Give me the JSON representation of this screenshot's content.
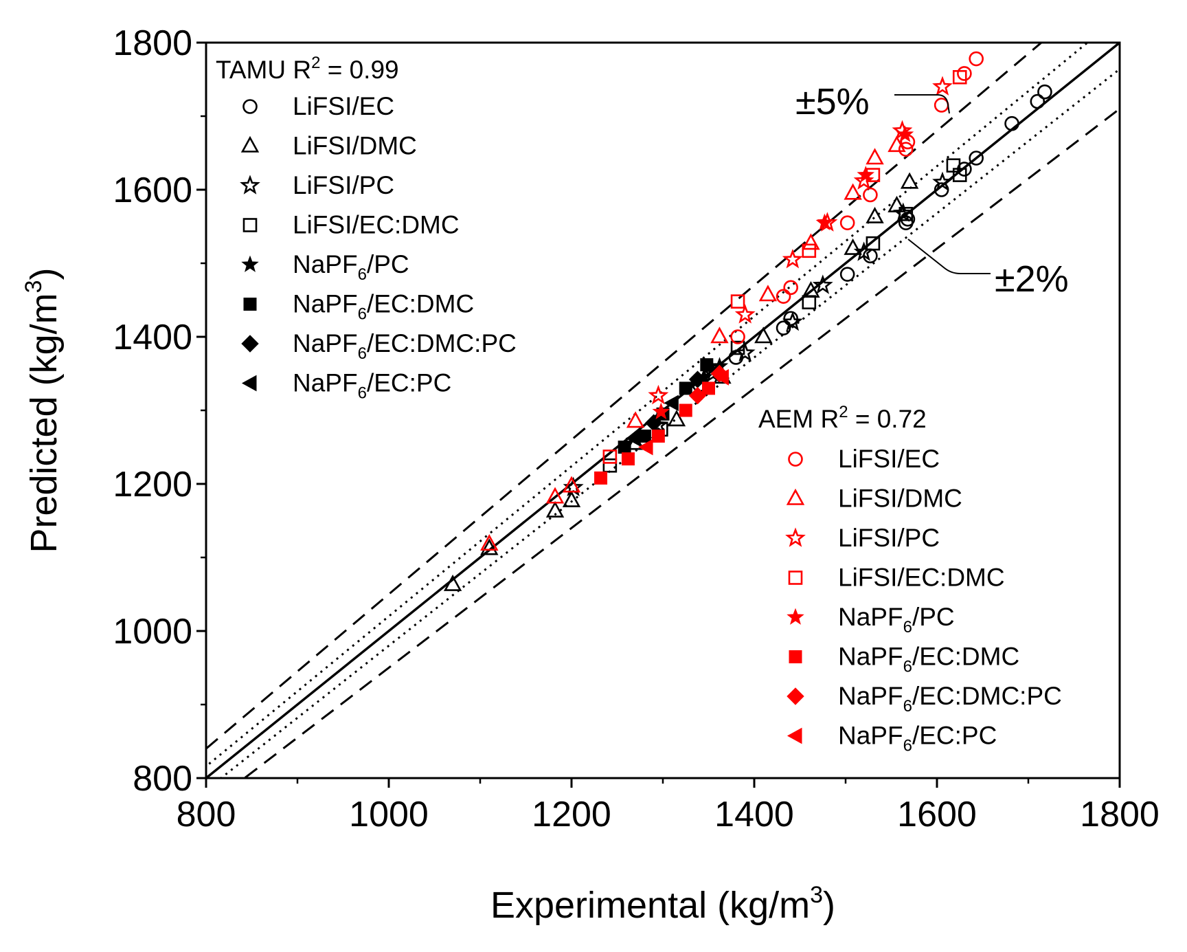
{
  "chart_data": {
    "type": "scatter",
    "xlabel": "Experimental (kg/m",
    "xlabel_sup": "3",
    "xlabel_end": ")",
    "ylabel": "Predicted (kg/m",
    "ylabel_sup": "3",
    "ylabel_end": ")",
    "xlim": [
      800,
      1800
    ],
    "ylim": [
      800,
      1800
    ],
    "xticks": [
      "800",
      "1000",
      "1200",
      "1400",
      "1600",
      "1800"
    ],
    "yticks": [
      "800",
      "1000",
      "1200",
      "1400",
      "1600",
      "1800"
    ],
    "grid": false,
    "reference_lines": {
      "parity": 1.0,
      "dotted": [
        1.02,
        0.98
      ],
      "dashed": [
        1.05,
        0.95
      ]
    },
    "annotations": {
      "plus_minus_5": "±5%",
      "plus_minus_2": "±2%"
    },
    "legend_tamu": {
      "title": "TAMU R",
      "title_sup": "2",
      "title_end": " = 0.99"
    },
    "legend_aem": {
      "title": "AEM R",
      "title_sup": "2",
      "title_end": " = 0.72"
    },
    "colors": {
      "TAMU": "#000000",
      "AEM": "#ff0000"
    },
    "series": [
      {
        "name": "LiFSI/EC",
        "model": "TAMU",
        "marker": "circle-open",
        "points": [
          [
            1340,
            1335
          ],
          [
            1380,
            1372
          ],
          [
            1432,
            1412
          ],
          [
            1440,
            1425
          ],
          [
            1502,
            1485
          ],
          [
            1527,
            1510
          ],
          [
            1566,
            1555
          ],
          [
            1568,
            1560
          ],
          [
            1605,
            1600
          ],
          [
            1630,
            1628
          ],
          [
            1643,
            1643
          ],
          [
            1682,
            1690
          ],
          [
            1710,
            1720
          ],
          [
            1718,
            1733
          ]
        ]
      },
      {
        "name": "LiFSI/DMC",
        "model": "TAMU",
        "marker": "triangle-open",
        "points": [
          [
            1070,
            1063
          ],
          [
            1110,
            1112
          ],
          [
            1182,
            1163
          ],
          [
            1200,
            1177
          ],
          [
            1270,
            1255
          ],
          [
            1315,
            1287
          ],
          [
            1365,
            1345
          ],
          [
            1410,
            1400
          ],
          [
            1462,
            1462
          ],
          [
            1508,
            1520
          ],
          [
            1532,
            1563
          ],
          [
            1556,
            1578
          ],
          [
            1570,
            1610
          ]
        ]
      },
      {
        "name": "LiFSI/PC",
        "model": "TAMU",
        "marker": "star-open",
        "points": [
          [
            1202,
            1195
          ],
          [
            1295,
            1280
          ],
          [
            1355,
            1350
          ],
          [
            1390,
            1378
          ],
          [
            1442,
            1420
          ],
          [
            1475,
            1470
          ],
          [
            1520,
            1515
          ],
          [
            1563,
            1568
          ],
          [
            1606,
            1610
          ]
        ]
      },
      {
        "name": "LiFSI/EC:DMC",
        "model": "TAMU",
        "marker": "square-open",
        "points": [
          [
            1242,
            1225
          ],
          [
            1298,
            1274
          ],
          [
            1382,
            1385
          ],
          [
            1460,
            1447
          ],
          [
            1530,
            1527
          ],
          [
            1566,
            1567
          ],
          [
            1618,
            1633
          ],
          [
            1625,
            1620
          ]
        ]
      },
      {
        "name": "NaPF6/PC",
        "model": "TAMU",
        "marker": "star-filled",
        "points": [
          [
            1345,
            1345
          ],
          [
            1362,
            1360
          ]
        ]
      },
      {
        "name": "NaPF6/EC:DMC",
        "model": "TAMU",
        "marker": "square-filled",
        "points": [
          [
            1258,
            1250
          ],
          [
            1280,
            1265
          ],
          [
            1300,
            1295
          ],
          [
            1325,
            1330
          ],
          [
            1348,
            1362
          ]
        ]
      },
      {
        "name": "NaPF6/EC:DMC:PC",
        "model": "TAMU",
        "marker": "diamond-filled",
        "points": [
          [
            1290,
            1283
          ],
          [
            1338,
            1342
          ]
        ]
      },
      {
        "name": "NaPF6/EC:PC",
        "model": "TAMU",
        "marker": "triangle-left-filled",
        "points": [
          [
            1268,
            1262
          ],
          [
            1310,
            1310
          ]
        ]
      },
      {
        "name": "LiFSI/EC",
        "model": "AEM",
        "marker": "circle-open",
        "points": [
          [
            1382,
            1400
          ],
          [
            1432,
            1455
          ],
          [
            1440,
            1467
          ],
          [
            1502,
            1555
          ],
          [
            1527,
            1593
          ],
          [
            1566,
            1655
          ],
          [
            1568,
            1665
          ],
          [
            1605,
            1715
          ],
          [
            1630,
            1758
          ],
          [
            1643,
            1778
          ]
        ]
      },
      {
        "name": "LiFSI/DMC",
        "model": "AEM",
        "marker": "triangle-open",
        "points": [
          [
            1110,
            1118
          ],
          [
            1182,
            1182
          ],
          [
            1200,
            1197
          ],
          [
            1270,
            1285
          ],
          [
            1362,
            1400
          ],
          [
            1415,
            1457
          ],
          [
            1462,
            1527
          ],
          [
            1508,
            1595
          ],
          [
            1532,
            1643
          ],
          [
            1556,
            1660
          ]
        ]
      },
      {
        "name": "LiFSI/PC",
        "model": "AEM",
        "marker": "star-open",
        "points": [
          [
            1295,
            1320
          ],
          [
            1390,
            1430
          ],
          [
            1442,
            1505
          ],
          [
            1480,
            1555
          ],
          [
            1520,
            1612
          ],
          [
            1562,
            1680
          ],
          [
            1606,
            1740
          ]
        ]
      },
      {
        "name": "LiFSI/EC:DMC",
        "model": "AEM",
        "marker": "square-open",
        "points": [
          [
            1242,
            1237
          ],
          [
            1382,
            1448
          ],
          [
            1460,
            1517
          ],
          [
            1530,
            1620
          ],
          [
            1625,
            1753
          ]
        ]
      },
      {
        "name": "NaPF6/PC",
        "model": "AEM",
        "marker": "star-filled",
        "points": [
          [
            1298,
            1298
          ],
          [
            1477,
            1555
          ],
          [
            1522,
            1620
          ],
          [
            1565,
            1675
          ]
        ]
      },
      {
        "name": "NaPF6/EC:DMC",
        "model": "AEM",
        "marker": "square-filled",
        "points": [
          [
            1232,
            1208
          ],
          [
            1262,
            1234
          ],
          [
            1295,
            1265
          ],
          [
            1325,
            1300
          ],
          [
            1350,
            1330
          ]
        ]
      },
      {
        "name": "NaPF6/EC:DMC:PC",
        "model": "AEM",
        "marker": "diamond-filled",
        "points": [
          [
            1338,
            1320
          ],
          [
            1362,
            1350
          ]
        ]
      },
      {
        "name": "NaPF6/EC:PC",
        "model": "AEM",
        "marker": "triangle-left-filled",
        "points": [
          [
            1282,
            1250
          ],
          [
            1365,
            1345
          ]
        ]
      }
    ],
    "legend_entries_tamu": [
      {
        "label": "LiFSI/EC",
        "marker": "circle-open"
      },
      {
        "label": "LiFSI/DMC",
        "marker": "triangle-open"
      },
      {
        "label": "LiFSI/PC",
        "marker": "star-open"
      },
      {
        "label": "LiFSI/EC:DMC",
        "marker": "square-open"
      },
      {
        "label": "NaPF",
        "sub": "6",
        "rest": "/PC",
        "marker": "star-filled"
      },
      {
        "label": "NaPF",
        "sub": "6",
        "rest": "/EC:DMC",
        "marker": "square-filled"
      },
      {
        "label": "NaPF",
        "sub": "6",
        "rest": "/EC:DMC:PC",
        "marker": "diamond-filled"
      },
      {
        "label": "NaPF",
        "sub": "6",
        "rest": "/EC:PC",
        "marker": "triangle-left-filled"
      }
    ],
    "legend_entries_aem": [
      {
        "label": "LiFSI/EC",
        "marker": "circle-open"
      },
      {
        "label": "LiFSI/DMC",
        "marker": "triangle-open"
      },
      {
        "label": "LiFSI/PC",
        "marker": "star-open"
      },
      {
        "label": "LiFSI/EC:DMC",
        "marker": "square-open"
      },
      {
        "label": "NaPF",
        "sub": "6",
        "rest": "/PC",
        "marker": "star-filled"
      },
      {
        "label": "NaPF",
        "sub": "6",
        "rest": "/EC:DMC",
        "marker": "square-filled"
      },
      {
        "label": "NaPF",
        "sub": "6",
        "rest": "/EC:DMC:PC",
        "marker": "diamond-filled"
      },
      {
        "label": "NaPF",
        "sub": "6",
        "rest": "/EC:PC",
        "marker": "triangle-left-filled"
      }
    ]
  }
}
